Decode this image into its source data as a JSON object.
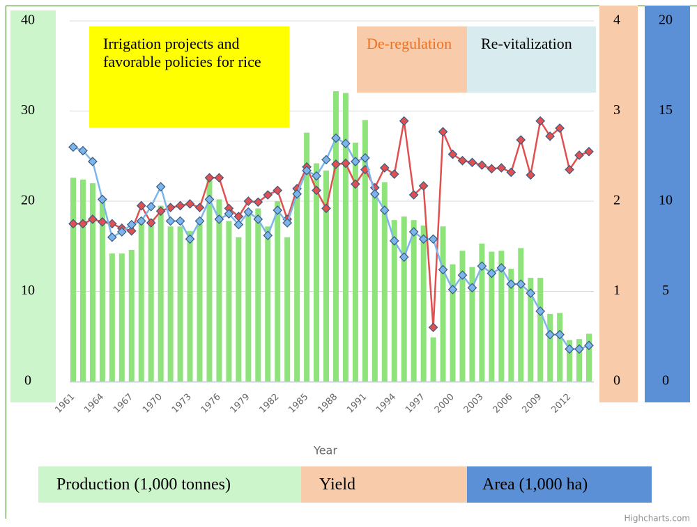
{
  "chart_data": {
    "type": "bar",
    "x_label": "Year",
    "credit": "Highcharts.com",
    "categories": [
      "1961",
      null,
      null,
      "1964",
      null,
      null,
      "1967",
      null,
      null,
      "1970",
      null,
      null,
      "1973",
      null,
      null,
      "1976",
      null,
      null,
      "1979",
      null,
      null,
      "1982",
      null,
      null,
      "1985",
      null,
      null,
      "1988",
      null,
      null,
      "1991",
      null,
      null,
      "1994",
      null,
      null,
      "1997",
      null,
      null,
      "2000",
      null,
      null,
      "2003",
      null,
      null,
      "2006",
      null,
      null,
      "2009",
      null,
      null,
      "2012",
      null,
      null
    ],
    "series": [
      {
        "name": "Production (1,000 tonnes)",
        "type": "bar",
        "axis": "y",
        "color": "#8fe37b",
        "panel_color": "#ccf5cc",
        "values": [
          22.6,
          22.4,
          22,
          20.4,
          14.2,
          14.2,
          14.6,
          18,
          18,
          19.5,
          17.2,
          17.2,
          16.7,
          17.8,
          22.6,
          20.2,
          17.8,
          16,
          18.6,
          19.2,
          17.2,
          20,
          16,
          21.5,
          27.6,
          24.2,
          23.4,
          32.2,
          32,
          26.5,
          29,
          20.9,
          22.1,
          17.9,
          18.3,
          17.9,
          17.3,
          4.9,
          17.2,
          13,
          14.5,
          12.7,
          15.3,
          14.4,
          14.5,
          12.5,
          14.8,
          11.5,
          11.5,
          7.5,
          7.6,
          4.6,
          4.7,
          5.3
        ]
      },
      {
        "name": "Yield",
        "type": "line",
        "axis": "y2",
        "color": "#e05050",
        "panel_color": "#f8ccaa",
        "values": [
          1.75,
          1.75,
          1.8,
          1.77,
          1.75,
          1.7,
          1.67,
          1.95,
          1.76,
          1.89,
          1.93,
          1.95,
          1.97,
          1.93,
          2.26,
          2.26,
          1.92,
          1.83,
          2,
          1.99,
          2.07,
          2.12,
          1.8,
          2.14,
          2.38,
          2.12,
          1.92,
          2.41,
          2.42,
          2.19,
          2.35,
          2.15,
          2.37,
          2.3,
          2.89,
          2.07,
          2.17,
          0.6,
          2.77,
          2.52,
          2.45,
          2.43,
          2.4,
          2.36,
          2.37,
          2.32,
          2.68,
          2.29,
          2.89,
          2.72,
          2.81,
          2.35,
          2.51,
          2.55
        ]
      },
      {
        "name": "Area (1,000 ha)",
        "type": "line",
        "axis": "y3",
        "color": "#7cb5ec",
        "panel_color": "#5b8fd6",
        "values": [
          13,
          12.8,
          12.2,
          10.1,
          8,
          8.3,
          8.7,
          8.9,
          9.7,
          10.8,
          8.9,
          8.9,
          7.9,
          8.9,
          10.1,
          9,
          9.3,
          8.7,
          9.4,
          9,
          8.1,
          9.5,
          8.8,
          10.4,
          11.7,
          11.4,
          12.3,
          13.5,
          13.2,
          12.2,
          12.4,
          10.4,
          9.5,
          7.8,
          6.9,
          8.3,
          7.9,
          7.9,
          6.2,
          5.1,
          5.9,
          5.2,
          6.4,
          6,
          6.3,
          5.4,
          5.4,
          4.9,
          3.9,
          2.6,
          2.6,
          1.8,
          1.8,
          2
        ]
      }
    ],
    "ylim": [
      0,
      40
    ],
    "yticks": [
      0,
      10,
      20,
      30,
      40
    ],
    "y2lim": [
      0,
      4
    ],
    "y2ticks": [
      0,
      1,
      2,
      3,
      4
    ],
    "y3lim": [
      0,
      20
    ],
    "y3ticks": [
      0,
      5,
      10,
      15,
      20
    ],
    "grid": true,
    "annotations": [
      {
        "text": "Irrigation projects and favorable policies for rice",
        "color": "#ffff00",
        "text_color": "#000000"
      },
      {
        "text": "De-regulation",
        "color": "#f8ccaa",
        "text_color": "#f07020"
      },
      {
        "text": "Re-vitalization",
        "color": "#d8ebef",
        "text_color": "#000000"
      }
    ]
  }
}
